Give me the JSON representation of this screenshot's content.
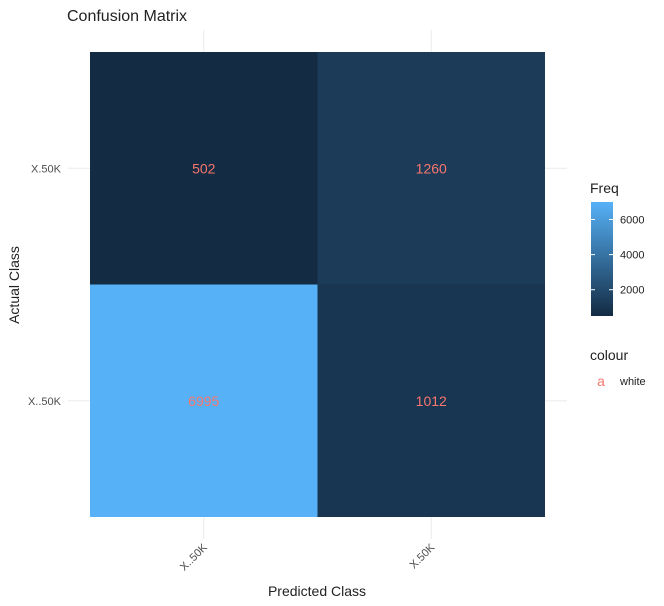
{
  "chart_data": {
    "type": "heatmap",
    "title": "Confusion Matrix",
    "xlabel": "Predicted Class",
    "ylabel": "Actual Class",
    "x_categories": [
      "X..50K",
      "X.50K"
    ],
    "y_categories": [
      "X..50K",
      "X.50K"
    ],
    "cells": [
      {
        "x": "X..50K",
        "y": "X.50K",
        "value": 502,
        "label": "502"
      },
      {
        "x": "X.50K",
        "y": "X.50K",
        "value": 1260,
        "label": "1260"
      },
      {
        "x": "X..50K",
        "y": "X..50K",
        "value": 6995,
        "label": "6995"
      },
      {
        "x": "X.50K",
        "y": "X..50K",
        "value": 1012,
        "label": "1012"
      }
    ],
    "fill_legend": {
      "title": "Freq",
      "breaks": [
        2000,
        4000,
        6000
      ],
      "break_labels": [
        "2000",
        "4000",
        "6000"
      ],
      "low_color": "#132B43",
      "high_color": "#56B1F7",
      "range": [
        502,
        6995
      ]
    },
    "colour_legend": {
      "title": "colour",
      "key_glyph": "a",
      "label": "white",
      "color": "#F8766D"
    },
    "grid": true,
    "label_color": "#F8766D"
  }
}
